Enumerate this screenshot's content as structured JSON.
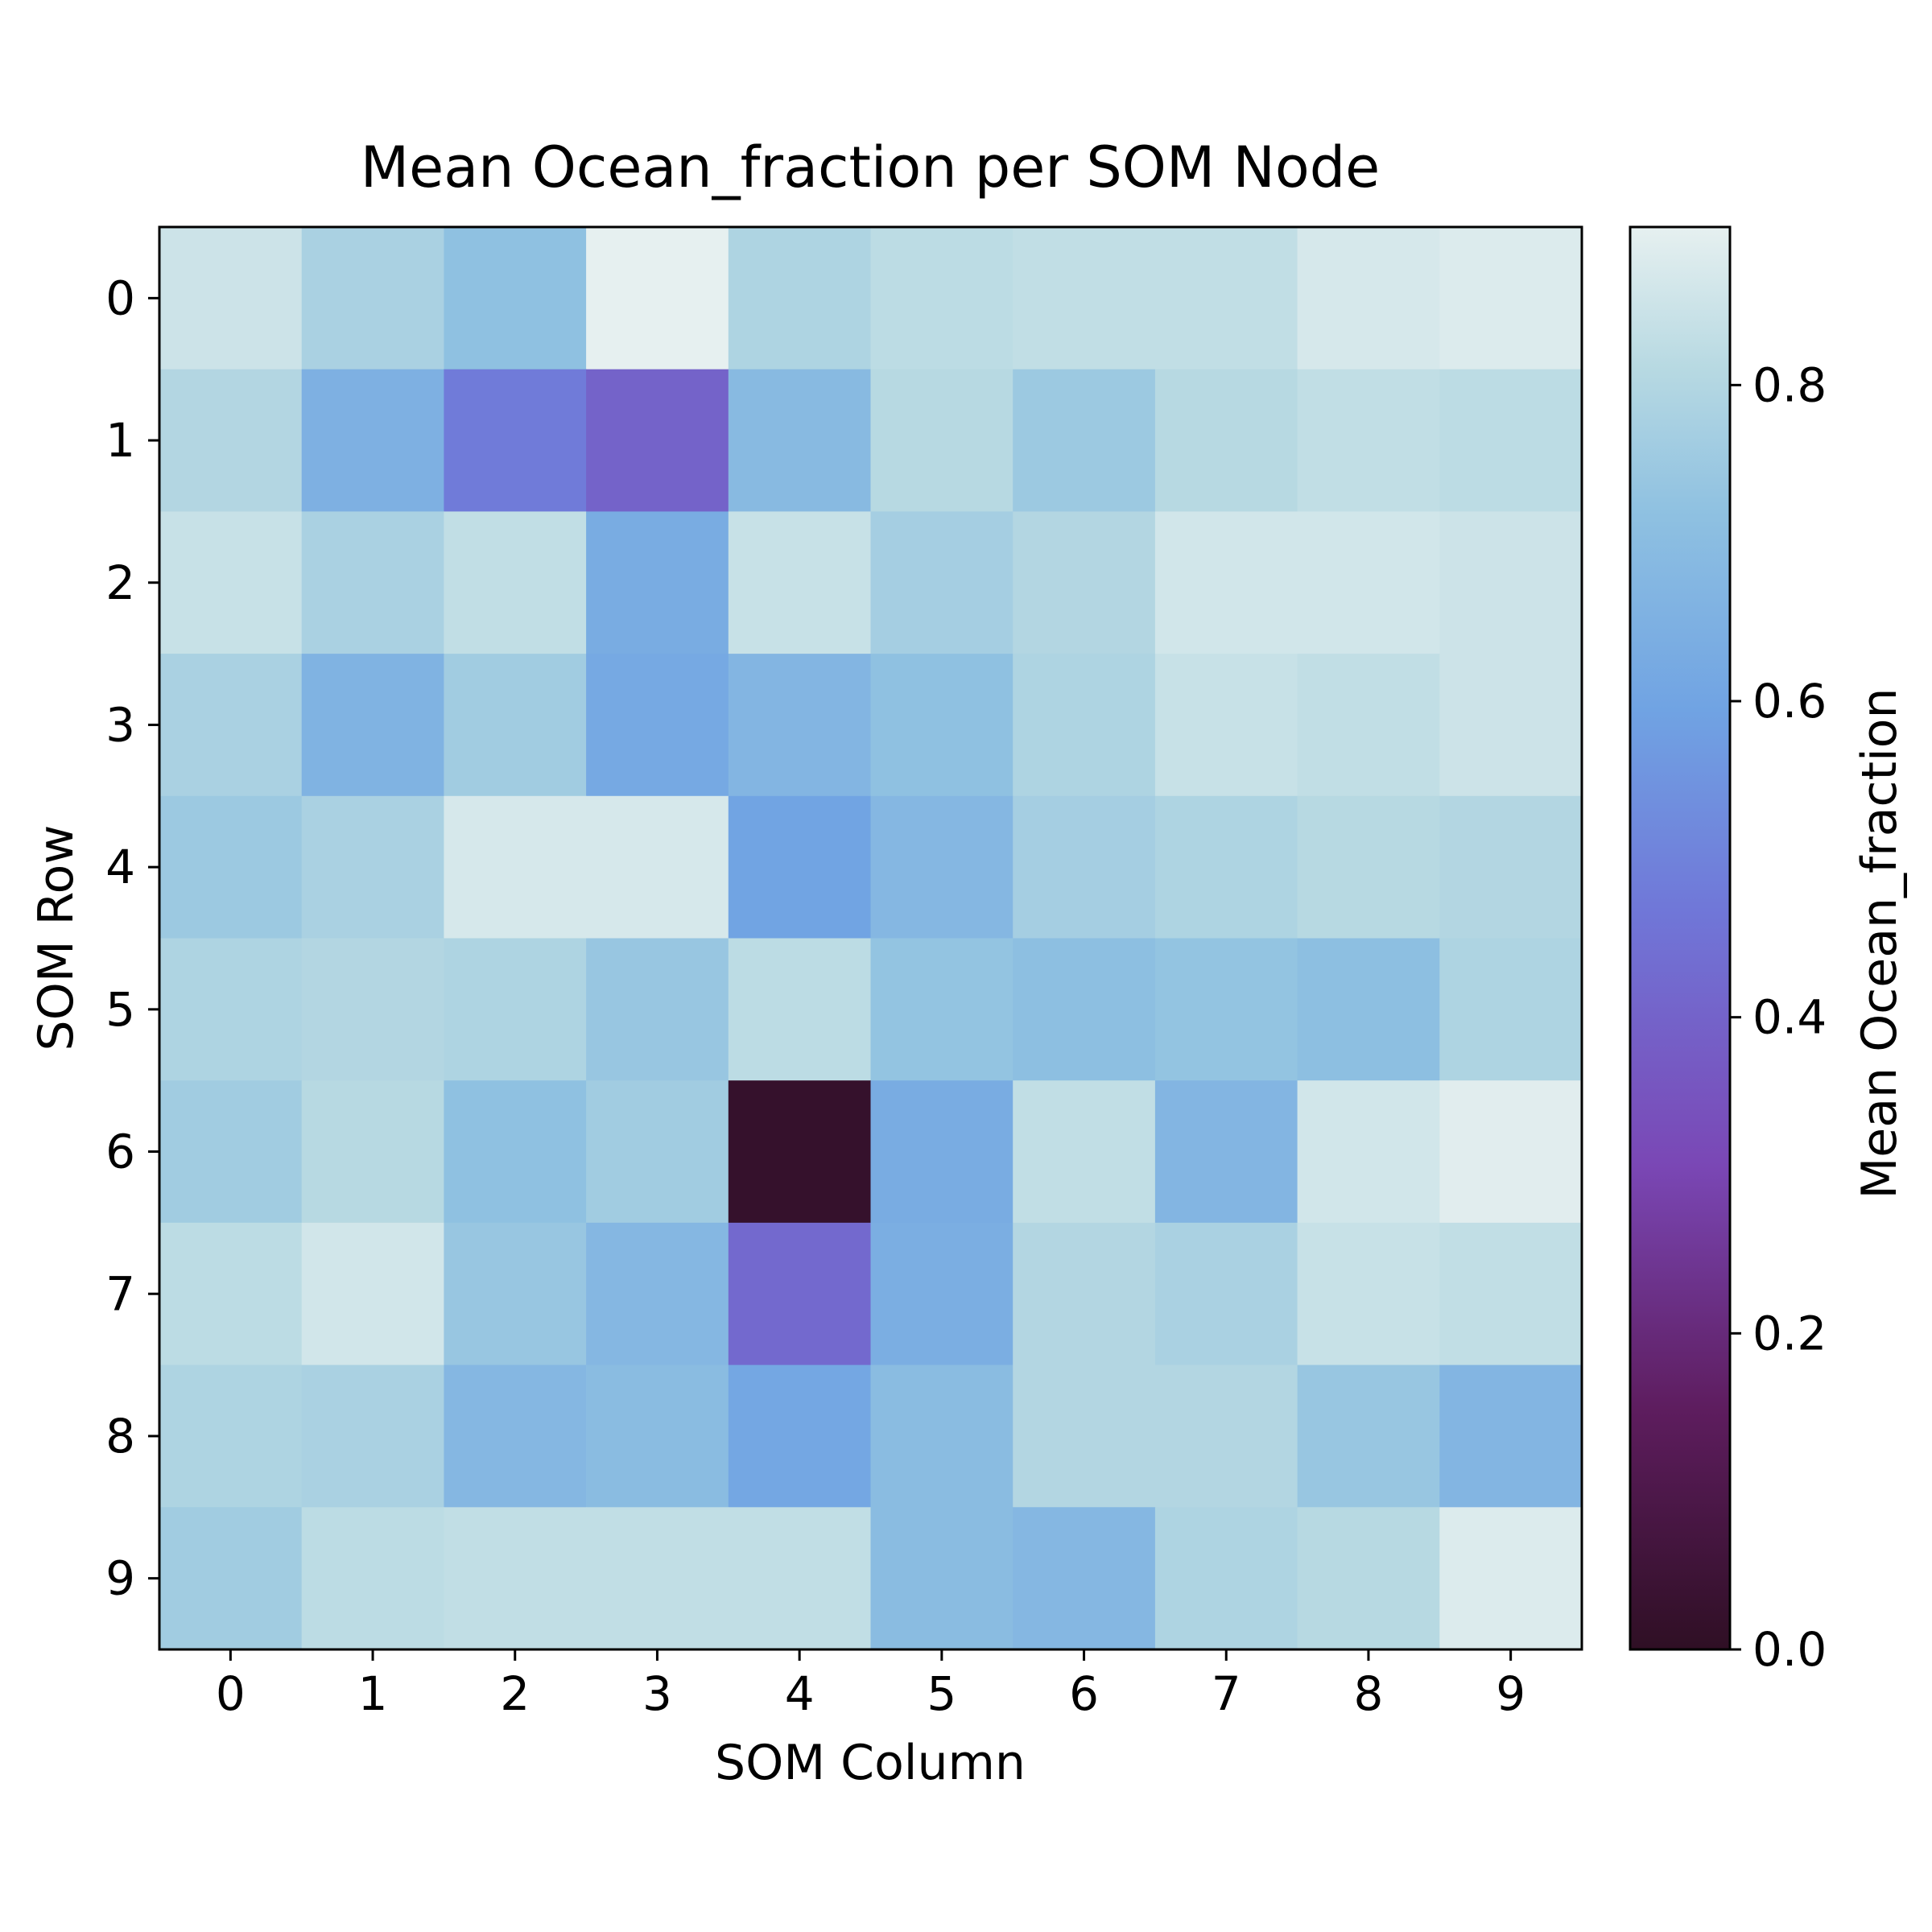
{
  "chart_data": {
    "type": "heatmap",
    "title": "Mean Ocean_fraction per SOM Node",
    "xlabel": "SOM Column",
    "ylabel": "SOM Row",
    "x_ticks": [
      "0",
      "1",
      "2",
      "3",
      "4",
      "5",
      "6",
      "7",
      "8",
      "9"
    ],
    "y_ticks": [
      "0",
      "1",
      "2",
      "3",
      "4",
      "5",
      "6",
      "7",
      "8",
      "9"
    ],
    "values": [
      [
        0.85,
        0.78,
        0.72,
        0.9,
        0.79,
        0.82,
        0.83,
        0.83,
        0.87,
        0.88
      ],
      [
        0.8,
        0.65,
        0.48,
        0.4,
        0.69,
        0.81,
        0.75,
        0.81,
        0.83,
        0.82
      ],
      [
        0.84,
        0.78,
        0.83,
        0.63,
        0.84,
        0.77,
        0.8,
        0.86,
        0.86,
        0.85
      ],
      [
        0.78,
        0.66,
        0.76,
        0.62,
        0.67,
        0.72,
        0.79,
        0.84,
        0.83,
        0.85
      ],
      [
        0.75,
        0.78,
        0.87,
        0.87,
        0.6,
        0.68,
        0.77,
        0.79,
        0.81,
        0.8
      ],
      [
        0.79,
        0.8,
        0.79,
        0.74,
        0.82,
        0.73,
        0.71,
        0.73,
        0.71,
        0.79
      ],
      [
        0.76,
        0.81,
        0.72,
        0.76,
        0.02,
        0.63,
        0.83,
        0.67,
        0.86,
        0.89
      ],
      [
        0.82,
        0.86,
        0.74,
        0.68,
        0.42,
        0.64,
        0.8,
        0.78,
        0.84,
        0.83
      ],
      [
        0.79,
        0.78,
        0.68,
        0.7,
        0.61,
        0.7,
        0.8,
        0.8,
        0.74,
        0.67
      ],
      [
        0.76,
        0.82,
        0.83,
        0.83,
        0.83,
        0.7,
        0.68,
        0.79,
        0.81,
        0.88
      ]
    ],
    "colorbar": {
      "label": "Mean Ocean_fraction",
      "range": [
        0.0,
        0.9
      ],
      "ticks": [
        "0.0",
        "0.2",
        "0.4",
        "0.6",
        "0.8"
      ],
      "tick_values": [
        0.0,
        0.2,
        0.4,
        0.6,
        0.8
      ],
      "colormap_stops": [
        [
          0.0,
          "#2f0f24"
        ],
        [
          0.17,
          "#5e1d5f"
        ],
        [
          0.34,
          "#7a47b5"
        ],
        [
          0.52,
          "#7077d8"
        ],
        [
          0.66,
          "#70a3e3"
        ],
        [
          0.8,
          "#8fc1e1"
        ],
        [
          0.9,
          "#b7d9e2"
        ],
        [
          1.0,
          "#e6f0f0"
        ]
      ]
    },
    "grid": false,
    "legend": "colorbar-right"
  }
}
